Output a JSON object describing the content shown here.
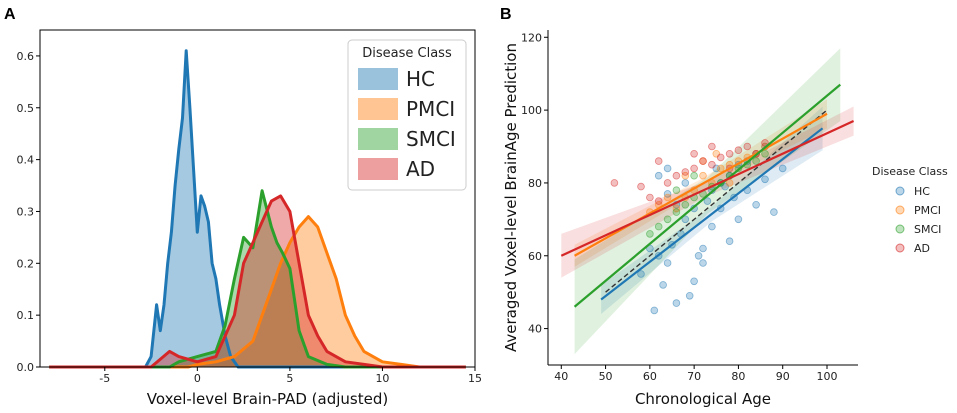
{
  "panels": {
    "a_label": "A",
    "b_label": "B"
  },
  "chart_data": [
    {
      "type": "area",
      "title": "",
      "xlabel": "Voxel-level Brain-PAD (adjusted)",
      "ylabel": "",
      "xlim": [
        -8.5,
        15
      ],
      "ylim": [
        0,
        0.65
      ],
      "xticks": [
        -5,
        0,
        5,
        10,
        15
      ],
      "yticks": [
        0.0,
        0.1,
        0.2,
        0.3,
        0.4,
        0.5,
        0.6
      ],
      "legend": {
        "title": "Disease Class",
        "position": "top-right"
      },
      "series": [
        {
          "name": "HC",
          "color": "#1f77b4",
          "x": [
            -8,
            -2.8,
            -2.5,
            -2.2,
            -2.0,
            -1.8,
            -1.6,
            -1.4,
            -1.2,
            -1.0,
            -0.8,
            -0.6,
            -0.4,
            -0.2,
            0,
            0.2,
            0.4,
            0.6,
            0.8,
            1.0,
            1.2,
            1.5,
            1.8,
            2.2,
            14.5
          ],
          "y": [
            0,
            0.0,
            0.02,
            0.12,
            0.07,
            0.12,
            0.2,
            0.26,
            0.35,
            0.42,
            0.48,
            0.61,
            0.5,
            0.38,
            0.26,
            0.33,
            0.31,
            0.28,
            0.2,
            0.17,
            0.12,
            0.06,
            0.02,
            0.0,
            0
          ]
        },
        {
          "name": "PMCI",
          "color": "#ff7f0e",
          "x": [
            -8,
            -0.5,
            0,
            1,
            2,
            3,
            4,
            4.5,
            5,
            5.5,
            6,
            6.5,
            7,
            7.5,
            8,
            8.5,
            9,
            10,
            11,
            12,
            14.5
          ],
          "y": [
            0,
            0.0,
            0.005,
            0.01,
            0.02,
            0.05,
            0.15,
            0.2,
            0.24,
            0.27,
            0.29,
            0.27,
            0.22,
            0.17,
            0.1,
            0.06,
            0.03,
            0.01,
            0.005,
            0.0,
            0
          ]
        },
        {
          "name": "SMCI",
          "color": "#2ca02c",
          "x": [
            -8,
            -1.5,
            -1,
            0,
            1,
            1.5,
            2,
            2.5,
            3,
            3.5,
            4,
            4.3,
            4.6,
            5,
            5.5,
            6,
            7,
            8,
            14.5
          ],
          "y": [
            0,
            0.0,
            0.01,
            0.02,
            0.03,
            0.08,
            0.17,
            0.25,
            0.23,
            0.34,
            0.27,
            0.24,
            0.22,
            0.19,
            0.07,
            0.02,
            0.005,
            0.0,
            0
          ]
        },
        {
          "name": "AD",
          "color": "#d62728",
          "x": [
            -8,
            -2.5,
            -1.5,
            -1,
            0,
            1,
            2,
            2.5,
            3,
            3.5,
            4,
            4.5,
            5,
            5.5,
            6,
            6.5,
            7,
            8,
            9,
            10,
            14.5
          ],
          "y": [
            0,
            0.0,
            0.03,
            0.02,
            0.01,
            0.02,
            0.1,
            0.2,
            0.24,
            0.28,
            0.32,
            0.33,
            0.3,
            0.2,
            0.1,
            0.06,
            0.03,
            0.01,
            0.005,
            0.0,
            0
          ]
        }
      ]
    },
    {
      "type": "scatter",
      "title": "",
      "xlabel": "Chronological Age",
      "ylabel": "Averaged Voxel-level BrainAge Prediction",
      "xlim": [
        37,
        107
      ],
      "ylim": [
        30,
        122
      ],
      "xticks": [
        40,
        50,
        60,
        70,
        80,
        90,
        100
      ],
      "yticks": [
        40,
        60,
        80,
        100,
        120
      ],
      "legend": {
        "title": "Disease Class",
        "position": "right"
      },
      "identity_line": {
        "x": [
          50,
          100
        ],
        "y": [
          50,
          100
        ],
        "style": "dashed",
        "color": "#333333"
      },
      "series": [
        {
          "name": "HC",
          "color": "#1f77b4",
          "fit": {
            "x": [
              49,
              99
            ],
            "y": [
              48,
              95
            ],
            "band_half_width": [
              4,
              6
            ]
          },
          "points": [
            [
              58,
              55
            ],
            [
              60,
              62
            ],
            [
              61,
              45
            ],
            [
              62,
              60
            ],
            [
              63,
              52
            ],
            [
              64,
              58
            ],
            [
              65,
              63
            ],
            [
              66,
              47
            ],
            [
              67,
              66
            ],
            [
              68,
              70
            ],
            [
              69,
              49
            ],
            [
              70,
              53
            ],
            [
              71,
              60
            ],
            [
              72,
              62
            ],
            [
              73,
              75
            ],
            [
              74,
              68
            ],
            [
              75,
              84
            ],
            [
              76,
              73
            ],
            [
              77,
              79
            ],
            [
              78,
              64
            ],
            [
              79,
              76
            ],
            [
              80,
              70
            ],
            [
              82,
              78
            ],
            [
              84,
              74
            ],
            [
              86,
              81
            ],
            [
              88,
              72
            ],
            [
              90,
              84
            ],
            [
              62,
              82
            ],
            [
              64,
              77
            ],
            [
              66,
              74
            ],
            [
              68,
              80
            ],
            [
              70,
              73
            ],
            [
              72,
              58
            ],
            [
              74,
              78
            ],
            [
              76,
              80
            ],
            [
              78,
              82
            ],
            [
              80,
              85
            ],
            [
              82,
              86
            ],
            [
              84,
              88
            ],
            [
              86,
              90
            ],
            [
              64,
              84
            ]
          ]
        },
        {
          "name": "PMCI",
          "color": "#ff7f0e",
          "fit": {
            "x": [
              43,
              100
            ],
            "y": [
              60,
              99
            ],
            "band_half_width": [
              3,
              4
            ]
          },
          "points": [
            [
              60,
              72
            ],
            [
              62,
              74
            ],
            [
              64,
              76
            ],
            [
              66,
              73
            ],
            [
              68,
              76
            ],
            [
              70,
              78
            ],
            [
              72,
              82
            ],
            [
              74,
              80
            ],
            [
              76,
              84
            ],
            [
              78,
              85
            ],
            [
              80,
              86
            ],
            [
              82,
              87
            ],
            [
              84,
              88
            ],
            [
              86,
              90
            ],
            [
              68,
              82
            ],
            [
              72,
              86
            ],
            [
              75,
              88
            ],
            [
              78,
              80
            ]
          ]
        },
        {
          "name": "SMCI",
          "color": "#2ca02c",
          "fit": {
            "x": [
              43,
              103
            ],
            "y": [
              46,
              107
            ],
            "band_half_width": [
              13,
              10
            ]
          },
          "points": [
            [
              60,
              66
            ],
            [
              62,
              68
            ],
            [
              64,
              70
            ],
            [
              66,
              72
            ],
            [
              68,
              74
            ],
            [
              70,
              76
            ],
            [
              72,
              77
            ],
            [
              74,
              79
            ],
            [
              76,
              80
            ],
            [
              78,
              82
            ],
            [
              80,
              84
            ],
            [
              82,
              85
            ],
            [
              84,
              86
            ],
            [
              86,
              88
            ],
            [
              66,
              78
            ],
            [
              70,
              82
            ]
          ]
        },
        {
          "name": "AD",
          "color": "#d62728",
          "fit": {
            "x": [
              40,
              106
            ],
            "y": [
              60,
              97
            ],
            "band_half_width": [
              6,
              4
            ]
          },
          "points": [
            [
              52,
              80
            ],
            [
              58,
              79
            ],
            [
              60,
              76
            ],
            [
              62,
              75
            ],
            [
              64,
              80
            ],
            [
              66,
              82
            ],
            [
              68,
              83
            ],
            [
              70,
              84
            ],
            [
              72,
              86
            ],
            [
              74,
              85
            ],
            [
              76,
              87
            ],
            [
              78,
              88
            ],
            [
              80,
              89
            ],
            [
              82,
              90
            ],
            [
              84,
              88
            ],
            [
              86,
              91
            ],
            [
              70,
              88
            ],
            [
              74,
              90
            ],
            [
              78,
              84
            ],
            [
              62,
              86
            ]
          ]
        }
      ]
    }
  ]
}
